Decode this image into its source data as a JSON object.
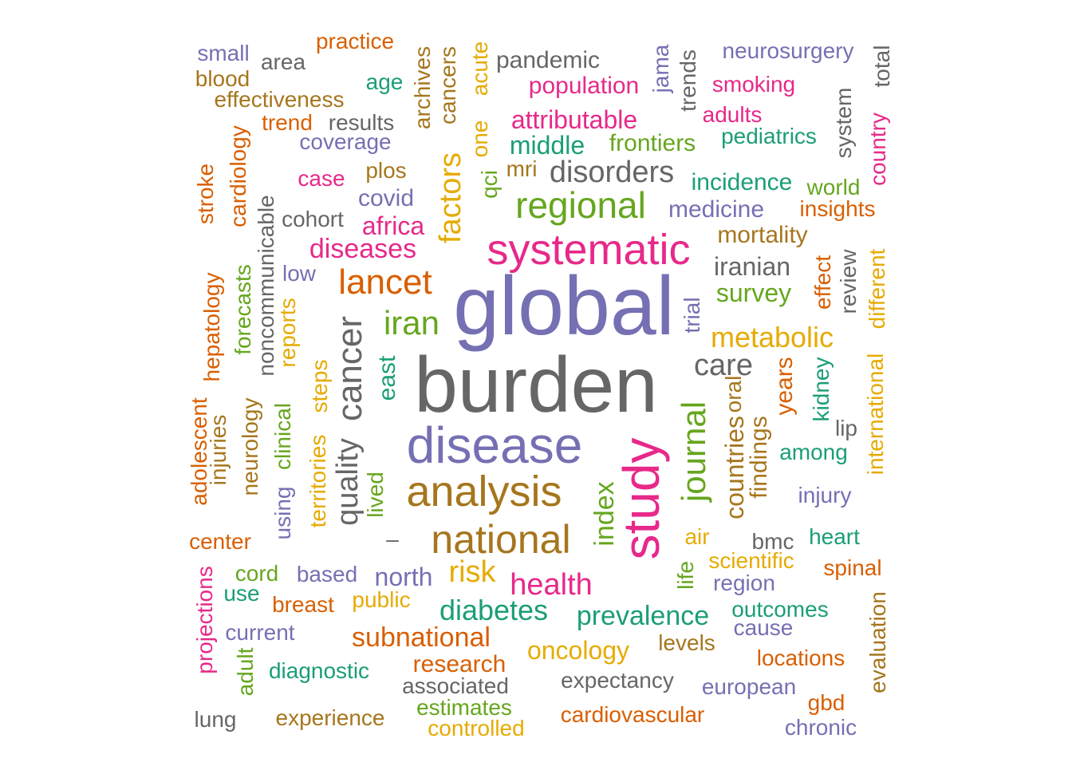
{
  "palette": {
    "teal": "#1b9e77",
    "orange": "#d95f02",
    "purple": "#7570b3",
    "pink": "#e7298a",
    "green": "#66a61e",
    "mustard": "#e6ab02",
    "brown": "#a6761d",
    "gray": "#666666"
  },
  "words": [
    {
      "text": "global",
      "color": "purple"
    },
    {
      "text": "burden",
      "color": "gray"
    },
    {
      "text": "disease",
      "color": "purple"
    },
    {
      "text": "study",
      "color": "pink"
    },
    {
      "text": "systematic",
      "color": "pink"
    },
    {
      "text": "analysis",
      "color": "brown"
    },
    {
      "text": "national",
      "color": "brown"
    },
    {
      "text": "regional",
      "color": "green"
    },
    {
      "text": "lancet",
      "color": "orange"
    },
    {
      "text": "cancer",
      "color": "gray"
    },
    {
      "text": "journal",
      "color": "green"
    },
    {
      "text": "iran",
      "color": "green"
    },
    {
      "text": "factors",
      "color": "mustard"
    },
    {
      "text": "disorders",
      "color": "gray"
    },
    {
      "text": "metabolic",
      "color": "mustard"
    },
    {
      "text": "care",
      "color": "gray"
    },
    {
      "text": "health",
      "color": "pink"
    },
    {
      "text": "risk",
      "color": "mustard"
    },
    {
      "text": "diabetes",
      "color": "teal"
    },
    {
      "text": "subnational",
      "color": "orange"
    },
    {
      "text": "prevalence",
      "color": "teal"
    },
    {
      "text": "diseases",
      "color": "pink"
    },
    {
      "text": "index",
      "color": "green"
    },
    {
      "text": "quality",
      "color": "gray"
    },
    {
      "text": "countries",
      "color": "brown"
    },
    {
      "text": "north",
      "color": "purple"
    },
    {
      "text": "middle",
      "color": "teal"
    },
    {
      "text": "attributable",
      "color": "pink"
    },
    {
      "text": "population",
      "color": "pink"
    },
    {
      "text": "oncology",
      "color": "mustard"
    },
    {
      "text": "survey",
      "color": "green"
    },
    {
      "text": "iranian",
      "color": "gray"
    },
    {
      "text": "mortality",
      "color": "brown"
    },
    {
      "text": "africa",
      "color": "pink"
    },
    {
      "text": "east",
      "color": "teal"
    },
    {
      "text": "years",
      "color": "orange"
    },
    {
      "text": "findings",
      "color": "brown"
    },
    {
      "text": "research",
      "color": "orange"
    },
    {
      "text": "covid",
      "color": "purple"
    },
    {
      "text": "pandemic",
      "color": "gray"
    },
    {
      "text": "frontiers",
      "color": "green"
    },
    {
      "text": "incidence",
      "color": "teal"
    },
    {
      "text": "medicine",
      "color": "purple"
    },
    {
      "text": "neurosurgery",
      "color": "purple"
    },
    {
      "text": "pediatrics",
      "color": "teal"
    },
    {
      "text": "smoking",
      "color": "pink"
    },
    {
      "text": "adults",
      "color": "pink"
    },
    {
      "text": "insights",
      "color": "orange"
    },
    {
      "text": "world",
      "color": "green"
    },
    {
      "text": "country",
      "color": "pink"
    },
    {
      "text": "system",
      "color": "gray"
    },
    {
      "text": "total",
      "color": "gray"
    },
    {
      "text": "trends",
      "color": "gray"
    },
    {
      "text": "jama",
      "color": "purple"
    },
    {
      "text": "review",
      "color": "gray"
    },
    {
      "text": "effect",
      "color": "orange"
    },
    {
      "text": "different",
      "color": "mustard"
    },
    {
      "text": "international",
      "color": "mustard"
    },
    {
      "text": "kidney",
      "color": "teal"
    },
    {
      "text": "oral",
      "color": "brown"
    },
    {
      "text": "lip",
      "color": "gray"
    },
    {
      "text": "among",
      "color": "teal"
    },
    {
      "text": "injury",
      "color": "purple"
    },
    {
      "text": "heart",
      "color": "teal"
    },
    {
      "text": "bmc",
      "color": "gray"
    },
    {
      "text": "spinal",
      "color": "orange"
    },
    {
      "text": "scientific",
      "color": "mustard"
    },
    {
      "text": "region",
      "color": "purple"
    },
    {
      "text": "outcomes",
      "color": "teal"
    },
    {
      "text": "cause",
      "color": "purple"
    },
    {
      "text": "evaluation",
      "color": "brown"
    },
    {
      "text": "locations",
      "color": "orange"
    },
    {
      "text": "gbd",
      "color": "orange"
    },
    {
      "text": "european",
      "color": "purple"
    },
    {
      "text": "chronic",
      "color": "purple"
    },
    {
      "text": "expectancy",
      "color": "gray"
    },
    {
      "text": "cardiovascular",
      "color": "orange"
    },
    {
      "text": "levels",
      "color": "brown"
    },
    {
      "text": "air",
      "color": "mustard"
    },
    {
      "text": "life",
      "color": "green"
    },
    {
      "text": "trial",
      "color": "purple"
    },
    {
      "text": "public",
      "color": "mustard"
    },
    {
      "text": "estimates",
      "color": "green"
    },
    {
      "text": "controlled",
      "color": "mustard"
    },
    {
      "text": "associated",
      "color": "gray"
    },
    {
      "text": "experience",
      "color": "brown"
    },
    {
      "text": "diagnostic",
      "color": "teal"
    },
    {
      "text": "lung",
      "color": "gray"
    },
    {
      "text": "adult",
      "color": "green"
    },
    {
      "text": "projections",
      "color": "pink"
    },
    {
      "text": "current",
      "color": "purple"
    },
    {
      "text": "breast",
      "color": "orange"
    },
    {
      "text": "use",
      "color": "teal"
    },
    {
      "text": "cord",
      "color": "green"
    },
    {
      "text": "based",
      "color": "purple"
    },
    {
      "text": "center",
      "color": "orange"
    },
    {
      "text": "–",
      "color": "gray"
    },
    {
      "text": "lived",
      "color": "green"
    },
    {
      "text": "territories",
      "color": "mustard"
    },
    {
      "text": "steps",
      "color": "mustard"
    },
    {
      "text": "using",
      "color": "purple"
    },
    {
      "text": "clinical",
      "color": "green"
    },
    {
      "text": "reports",
      "color": "mustard"
    },
    {
      "text": "neurology",
      "color": "brown"
    },
    {
      "text": "noncommunicable",
      "color": "gray"
    },
    {
      "text": "forecasts",
      "color": "green"
    },
    {
      "text": "injuries",
      "color": "brown"
    },
    {
      "text": "adolescent",
      "color": "orange"
    },
    {
      "text": "hepatology",
      "color": "orange"
    },
    {
      "text": "low",
      "color": "purple"
    },
    {
      "text": "cohort",
      "color": "gray"
    },
    {
      "text": "case",
      "color": "pink"
    },
    {
      "text": "plos",
      "color": "brown"
    },
    {
      "text": "stroke",
      "color": "orange"
    },
    {
      "text": "cardiology",
      "color": "orange"
    },
    {
      "text": "coverage",
      "color": "purple"
    },
    {
      "text": "trend",
      "color": "orange"
    },
    {
      "text": "results",
      "color": "gray"
    },
    {
      "text": "effectiveness",
      "color": "brown"
    },
    {
      "text": "blood",
      "color": "brown"
    },
    {
      "text": "small",
      "color": "purple"
    },
    {
      "text": "area",
      "color": "gray"
    },
    {
      "text": "practice",
      "color": "orange"
    },
    {
      "text": "age",
      "color": "teal"
    },
    {
      "text": "archives",
      "color": "brown"
    },
    {
      "text": "cancers",
      "color": "brown"
    },
    {
      "text": "one",
      "color": "mustard"
    },
    {
      "text": "acute",
      "color": "mustard"
    },
    {
      "text": "qci",
      "color": "green"
    },
    {
      "text": "mri",
      "color": "brown"
    }
  ]
}
